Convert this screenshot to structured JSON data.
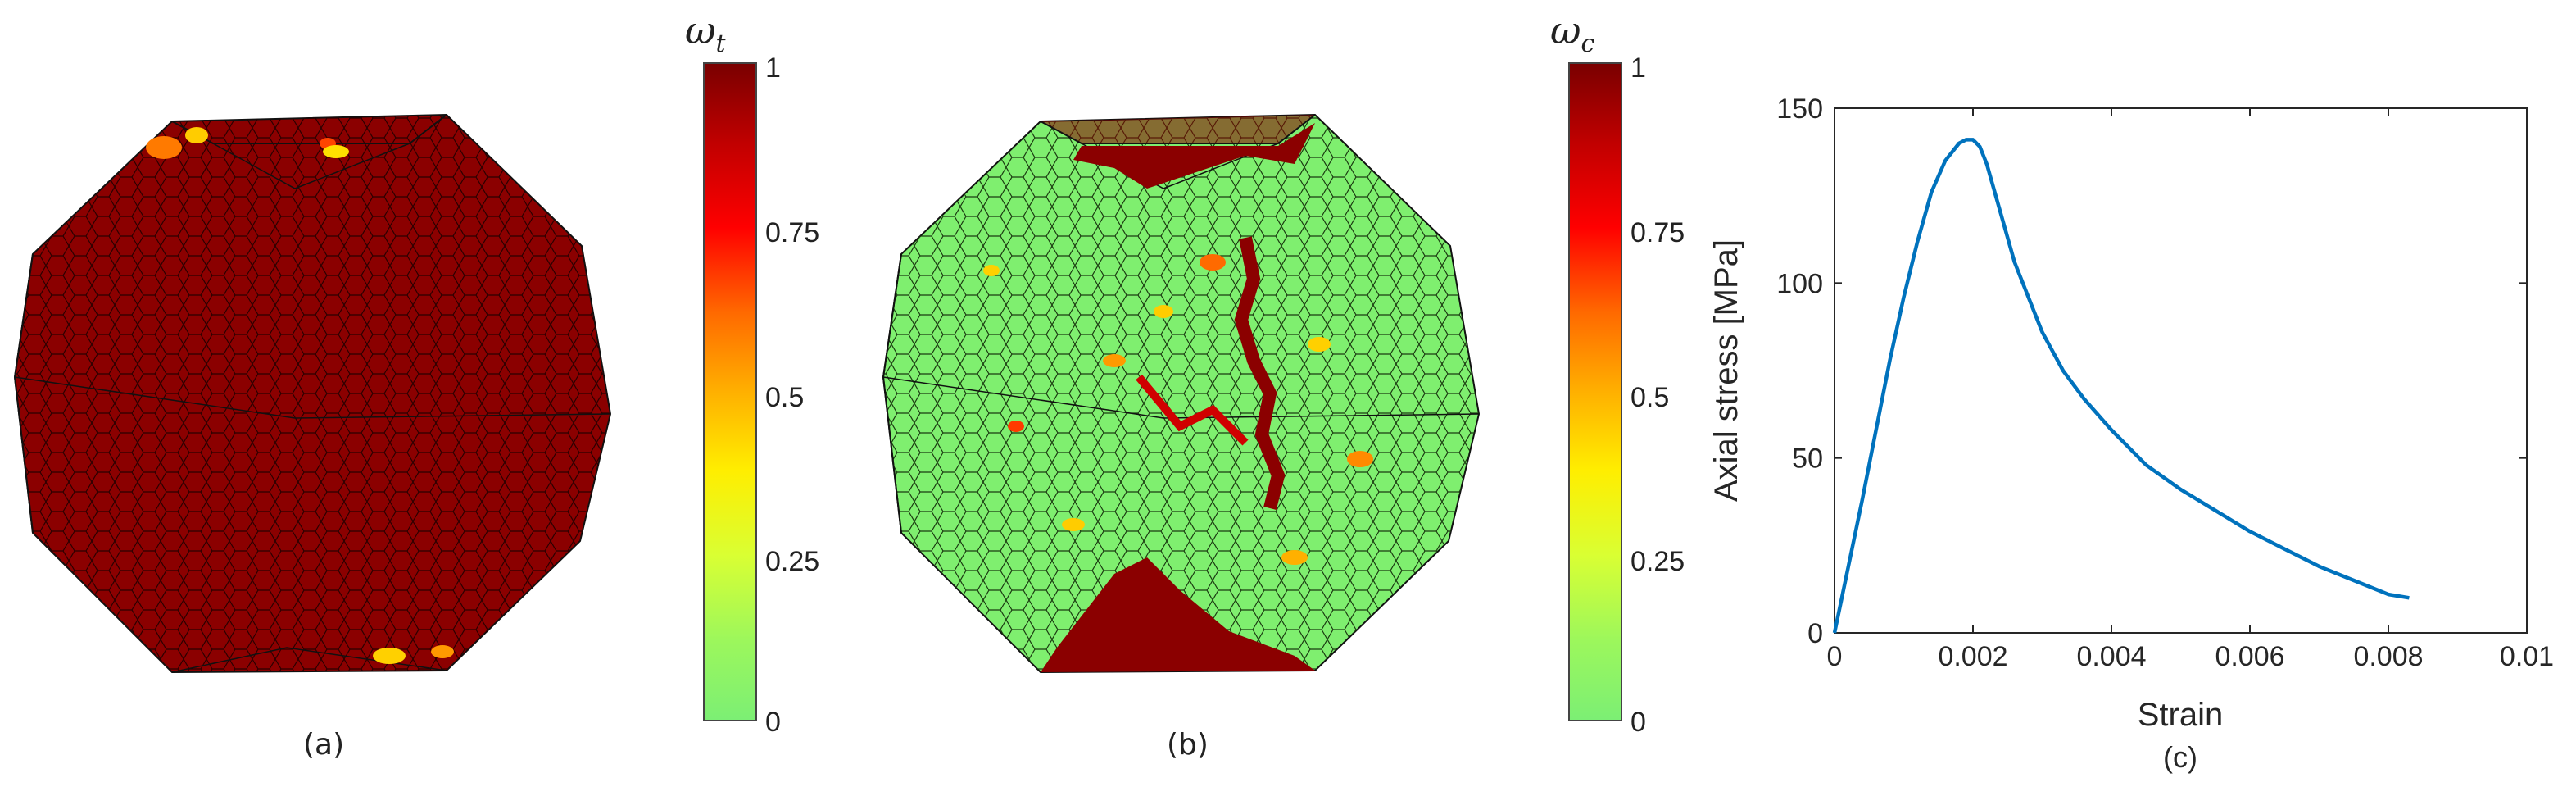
{
  "captions": {
    "a": "(a)",
    "b": "(b)",
    "c": "(c)"
  },
  "colorbar_a": {
    "symbol": "ω",
    "subscript": "t",
    "ticks": [
      "1",
      "0.75",
      "0.5",
      "0.25",
      "0"
    ]
  },
  "colorbar_b": {
    "symbol": "ω",
    "subscript": "c",
    "ticks": [
      "1",
      "0.75",
      "0.5",
      "0.25",
      "0"
    ]
  },
  "colors": {
    "damaged": "#8b0000",
    "undamaged": "#7fef6f",
    "curve": "#0072bd"
  },
  "chart_data": {
    "type": "line",
    "title": "",
    "xlabel": "Strain",
    "ylabel": "Axial stress [MPa]",
    "xlim": [
      0,
      0.01
    ],
    "ylim": [
      0,
      150
    ],
    "xticks": [
      "0",
      "0.002",
      "0.004",
      "0.006",
      "0.008",
      "0.01"
    ],
    "yticks": [
      "0",
      "50",
      "100",
      "150"
    ],
    "grid": false,
    "series": [
      {
        "x": [
          0,
          0.0002,
          0.0004,
          0.0006,
          0.0008,
          0.001,
          0.0012,
          0.0014,
          0.0016,
          0.0018,
          0.0019,
          0.002,
          0.0021,
          0.0022,
          0.0024,
          0.0026,
          0.0028,
          0.003,
          0.0033,
          0.0036,
          0.004,
          0.0045,
          0.005,
          0.0055,
          0.006,
          0.0065,
          0.007,
          0.0075,
          0.008,
          0.0083
        ],
        "y": [
          0,
          19,
          38,
          58,
          78,
          96,
          112,
          126,
          135,
          140,
          141,
          141,
          139,
          134,
          120,
          106,
          96,
          86,
          75,
          67,
          58,
          48,
          41,
          35,
          29,
          24,
          19,
          15,
          11,
          10
        ]
      }
    ]
  }
}
